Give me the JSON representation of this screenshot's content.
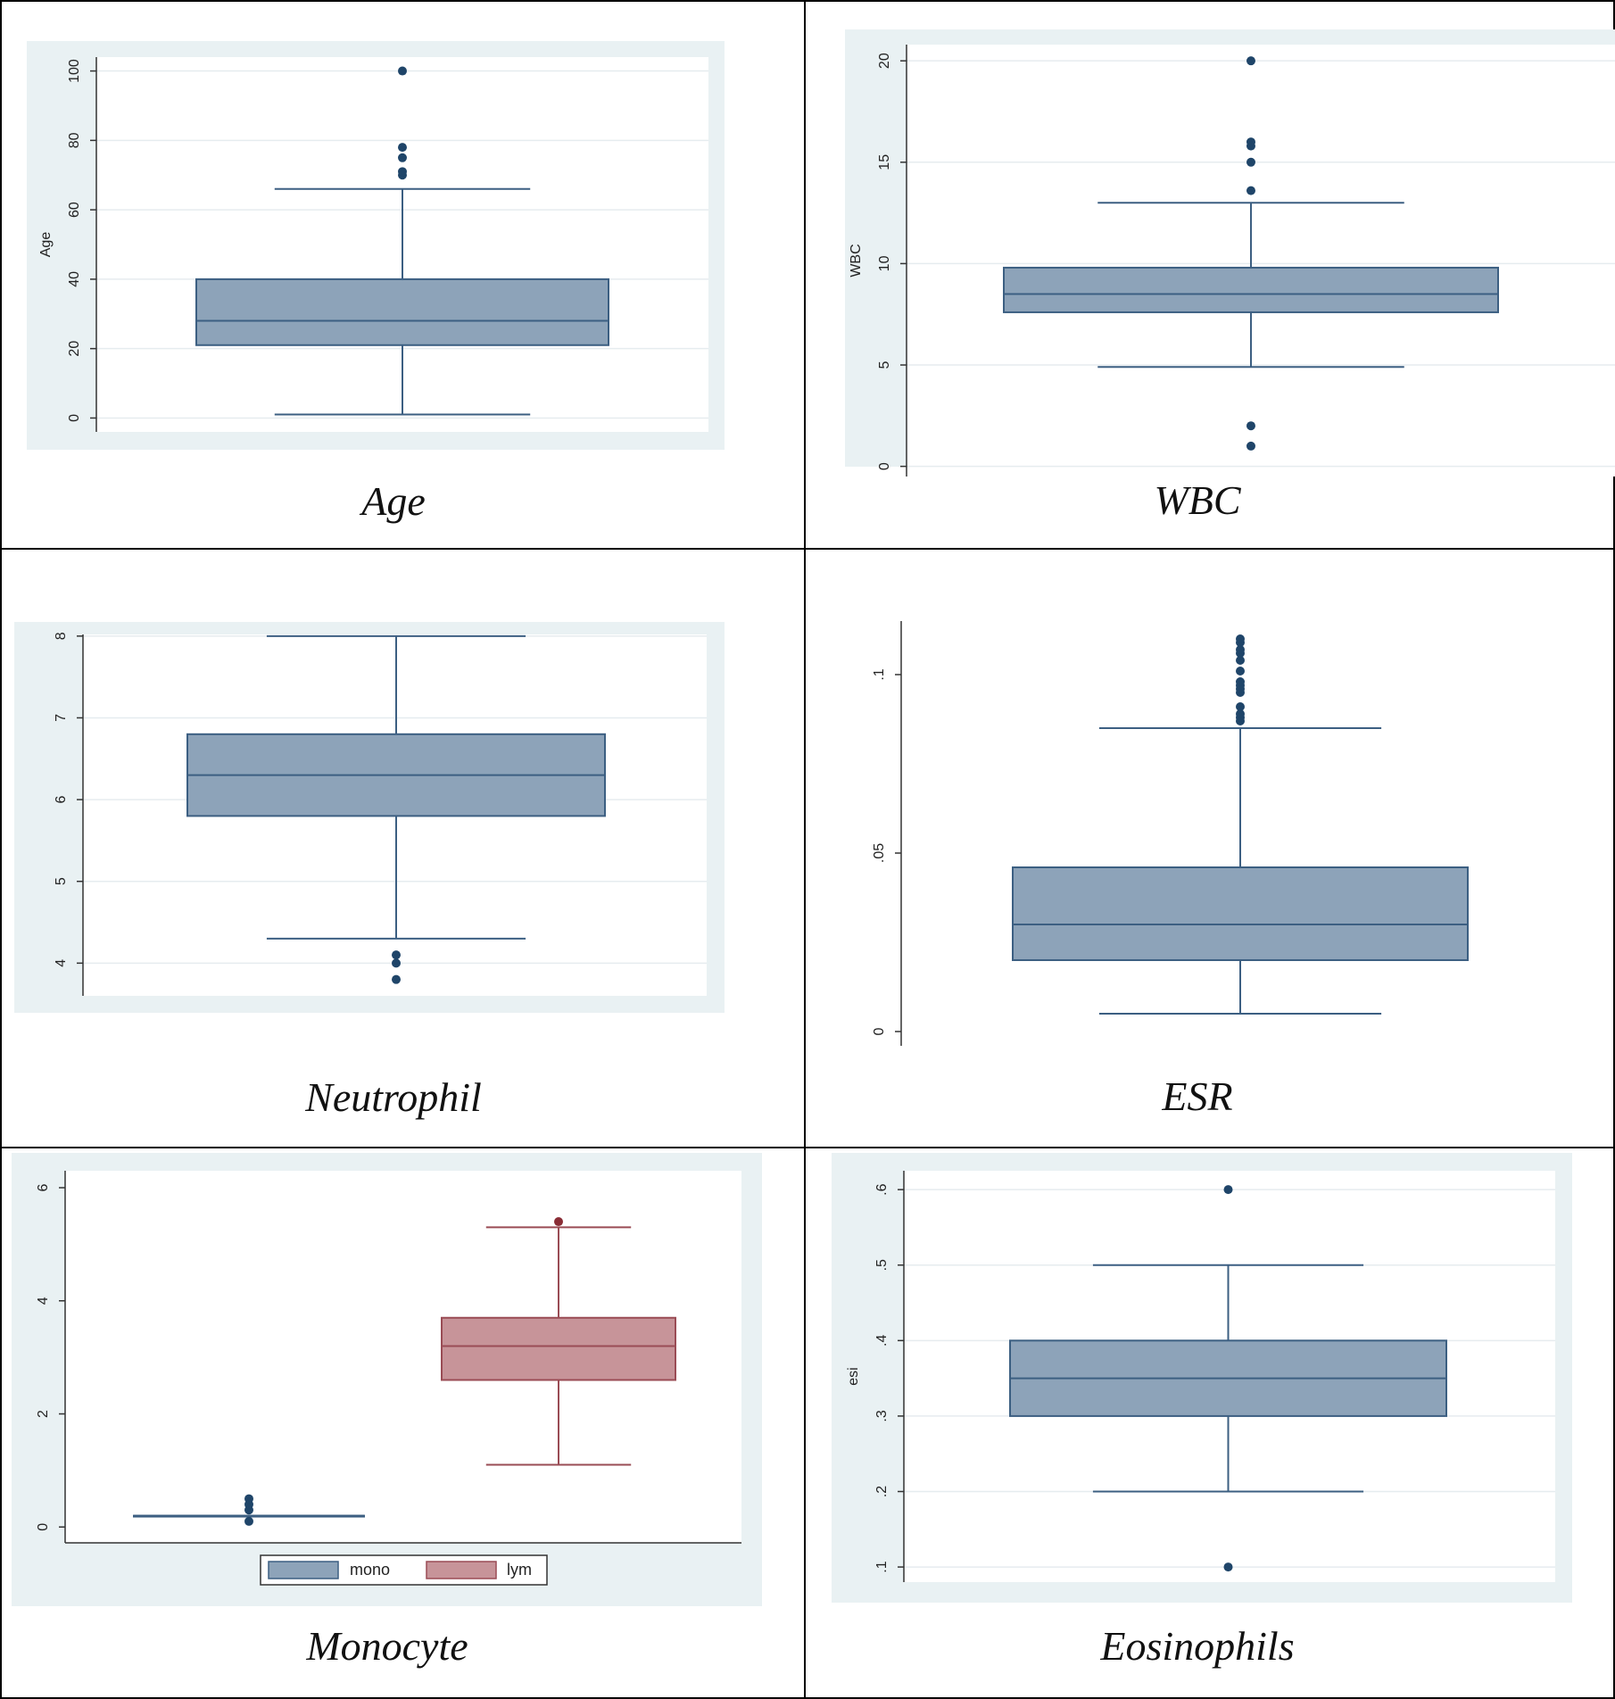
{
  "colors": {
    "border": "#000000",
    "frame_bg": "#e9f1f3",
    "plot_bg": "#ffffff",
    "grid": "#e6ecef",
    "axis": "#333333",
    "blue_fill": "#8da3b9",
    "blue_line": "#3c5f82",
    "blue_dot": "#1f4569",
    "red_fill": "#c79499",
    "red_line": "#9a4c55",
    "red_dot": "#8a2d36"
  },
  "chart_data": [
    {
      "type": "box",
      "caption": "Age",
      "ylabel": "Age",
      "ylim": [
        -4,
        104
      ],
      "yticks": [
        0,
        20,
        40,
        60,
        80,
        100
      ],
      "ytick_labels": [
        "0",
        "20",
        "40",
        "60",
        "80",
        "100"
      ],
      "grid": true,
      "series": [
        {
          "lower_whisker": 1,
          "q1": 21,
          "median": 28,
          "q3": 40,
          "upper_whisker": 66,
          "outliers": [
            70,
            71,
            75,
            78,
            100
          ]
        }
      ]
    },
    {
      "type": "box",
      "caption": "WBC",
      "ylabel": "WBC",
      "ylim": [
        -0.5,
        20.8
      ],
      "yticks": [
        0,
        5,
        10,
        15,
        20
      ],
      "ytick_labels": [
        "0",
        "5",
        "10",
        "15",
        "20"
      ],
      "grid": true,
      "series": [
        {
          "lower_whisker": 4.9,
          "q1": 7.6,
          "median": 8.5,
          "q3": 9.8,
          "upper_whisker": 13,
          "outliers": [
            1,
            2,
            13.6,
            15,
            15.8,
            16,
            20
          ]
        }
      ]
    },
    {
      "type": "box",
      "caption": "Neutrophil",
      "ylabel": "",
      "ylim": [
        3.6,
        8.02
      ],
      "yticks": [
        4,
        5,
        6,
        7,
        8
      ],
      "ytick_labels": [
        "4",
        "5",
        "6",
        "7",
        "8"
      ],
      "grid": true,
      "series": [
        {
          "lower_whisker": 4.3,
          "q1": 5.8,
          "median": 6.3,
          "q3": 6.8,
          "upper_whisker": 8.0,
          "outliers": [
            3.8,
            4.0,
            4.1
          ]
        }
      ]
    },
    {
      "type": "box",
      "caption": "ESR",
      "ylabel": "",
      "ylim": [
        -0.004,
        0.115
      ],
      "yticks": [
        0,
        0.05,
        0.1
      ],
      "ytick_labels": [
        "0",
        ".05",
        ".1"
      ],
      "grid": false,
      "series": [
        {
          "lower_whisker": 0.005,
          "q1": 0.02,
          "median": 0.03,
          "q3": 0.046,
          "upper_whisker": 0.085,
          "outliers": [
            0.087,
            0.088,
            0.089,
            0.091,
            0.095,
            0.096,
            0.097,
            0.098,
            0.101,
            0.104,
            0.106,
            0.107,
            0.109,
            0.11
          ]
        }
      ]
    },
    {
      "type": "box",
      "caption": "Monocyte",
      "ylabel": "",
      "ylim": [
        -0.28,
        6.3
      ],
      "yticks": [
        0,
        2,
        4,
        6
      ],
      "ytick_labels": [
        "0",
        "2",
        "4",
        "6"
      ],
      "grid": false,
      "legend_position": "bottom",
      "series": [
        {
          "name": "mono",
          "lower_whisker": 0.2,
          "q1": 0.2,
          "median": 0.2,
          "q3": 0.2,
          "upper_whisker": 0.2,
          "outliers": [
            0.1,
            0.3,
            0.4,
            0.5
          ]
        },
        {
          "name": "lym",
          "lower_whisker": 1.1,
          "q1": 2.6,
          "median": 3.2,
          "q3": 3.7,
          "upper_whisker": 5.3,
          "outliers": [
            5.4
          ]
        }
      ]
    },
    {
      "type": "box",
      "caption": "Eosinophils",
      "ylabel": "esi",
      "ylim": [
        0.08,
        0.625
      ],
      "yticks": [
        0.1,
        0.2,
        0.3,
        0.4,
        0.5,
        0.6
      ],
      "ytick_labels": [
        ".1",
        ".2",
        ".3",
        ".4",
        ".5",
        ".6"
      ],
      "grid": true,
      "series": [
        {
          "lower_whisker": 0.2,
          "q1": 0.3,
          "median": 0.35,
          "q3": 0.4,
          "upper_whisker": 0.5,
          "outliers": [
            0.1,
            0.6
          ]
        }
      ]
    }
  ]
}
